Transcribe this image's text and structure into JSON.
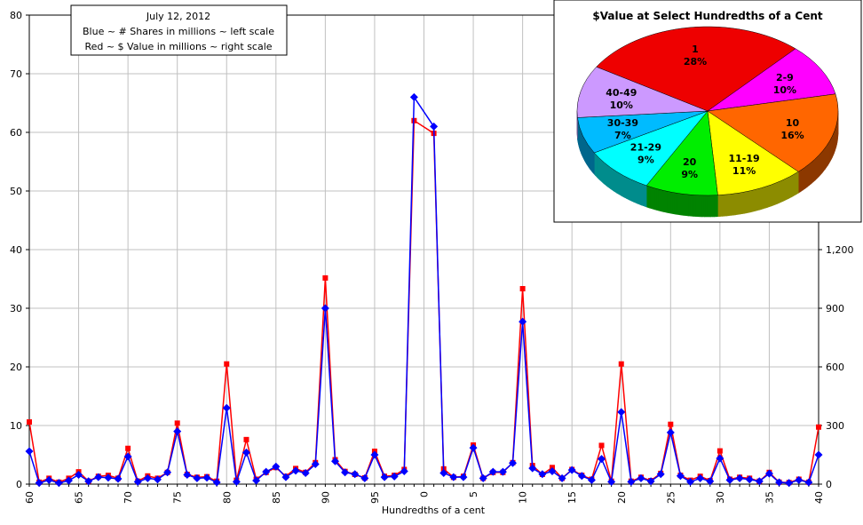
{
  "chart_data": [
    {
      "type": "line",
      "legend_box": {
        "date": "July 12, 2012",
        "line_blue": "Blue ~ # Shares in millions ~ left scale",
        "line_red": "Red ~ $ Value in millions ~ right scale"
      },
      "xlabel": "Hundredths of a cent",
      "x_tick_labels": [
        "60",
        "65",
        "70",
        "75",
        "80",
        "85",
        "90",
        "95",
        "0",
        "5",
        "10",
        "15",
        "20",
        "25",
        "30",
        "35",
        "40"
      ],
      "y_left": {
        "range": [
          0,
          80
        ],
        "ticks": [
          "0",
          "10",
          "20",
          "30",
          "40",
          "50",
          "60",
          "70",
          "80"
        ]
      },
      "y_right": {
        "range": [
          0,
          2400
        ],
        "ticks": [
          "0",
          "300",
          "600",
          "900",
          "1,200"
        ]
      },
      "grid": true,
      "x": [
        60,
        61,
        62,
        63,
        64,
        65,
        66,
        67,
        68,
        69,
        70,
        71,
        72,
        73,
        74,
        75,
        76,
        77,
        78,
        79,
        80,
        81,
        82,
        83,
        84,
        85,
        86,
        87,
        88,
        89,
        90,
        91,
        92,
        93,
        94,
        95,
        96,
        97,
        98,
        99,
        0,
        1,
        2,
        3,
        4,
        5,
        6,
        7,
        8,
        9,
        10,
        11,
        12,
        13,
        14,
        15,
        16,
        17,
        18,
        19,
        20,
        21,
        22,
        23,
        24,
        25,
        26,
        27,
        28,
        29,
        30,
        31,
        32,
        33,
        34,
        35,
        36,
        37,
        38,
        39,
        40
      ],
      "series": [
        {
          "color": "#0000ff",
          "axis": "left",
          "marker": "diamond",
          "values": [
            5.6,
            0.2,
            0.7,
            0.2,
            0.6,
            1.6,
            0.5,
            1.2,
            1.1,
            0.9,
            4.7,
            0.4,
            1.0,
            0.8,
            2.0,
            9.0,
            1.6,
            1.0,
            1.1,
            0.3,
            13.0,
            0.4,
            5.4,
            0.6,
            2.1,
            3.0,
            1.2,
            2.3,
            1.9,
            3.4,
            30.0,
            3.9,
            2.0,
            1.7,
            1.0,
            5.0,
            1.2,
            1.3,
            2.2,
            66.0,
            null,
            61.0,
            1.9,
            1.2,
            1.2,
            6.2,
            1.0,
            2.1,
            2.1,
            3.6,
            27.7,
            2.7,
            1.7,
            2.2,
            1.0,
            2.4,
            1.4,
            0.7,
            4.3,
            0.4,
            12.3,
            0.4,
            1.0,
            0.5,
            1.7,
            8.8,
            1.4,
            0.4,
            1.0,
            0.5,
            4.4,
            0.7,
            1.0,
            0.8,
            0.5,
            1.8,
            0.3,
            0.2,
            0.7,
            0.3,
            5.0
          ]
        },
        {
          "color": "#ff0000",
          "axis": "right",
          "marker": "square",
          "values": [
            318,
            10,
            30,
            10,
            30,
            63,
            15,
            40,
            45,
            30,
            183,
            15,
            42,
            30,
            60,
            312,
            50,
            35,
            38,
            15,
            615,
            20,
            228,
            25,
            60,
            85,
            40,
            80,
            60,
            110,
            1055,
            125,
            65,
            50,
            32,
            168,
            40,
            45,
            75,
            1860,
            null,
            1795,
            78,
            35,
            40,
            200,
            30,
            60,
            60,
            110,
            1000,
            95,
            50,
            85,
            30,
            75,
            45,
            25,
            198,
            15,
            615,
            15,
            35,
            18,
            55,
            306,
            45,
            20,
            40,
            18,
            170,
            25,
            35,
            30,
            15,
            60,
            10,
            8,
            25,
            10,
            292
          ]
        }
      ]
    },
    {
      "type": "pie",
      "title": "$Value at Select Hundredths of a Cent",
      "slices": [
        {
          "label": "1",
          "pct": 28,
          "text": "28%",
          "color": "#ee0000"
        },
        {
          "label": "2-9",
          "pct": 10,
          "text": "10%",
          "color": "#ff00ff"
        },
        {
          "label": "10",
          "pct": 16,
          "text": "16%",
          "color": "#ff6600"
        },
        {
          "label": "11-19",
          "pct": 11,
          "text": "11%",
          "color": "#ffff00"
        },
        {
          "label": "20",
          "pct": 9,
          "text": "9%",
          "color": "#00ee00"
        },
        {
          "label": "21-29",
          "pct": 9,
          "text": "9%",
          "color": "#00ffff"
        },
        {
          "label": "30-39",
          "pct": 7,
          "text": "7%",
          "color": "#00bbff"
        },
        {
          "label": "40-49",
          "pct": 10,
          "text": "10%",
          "color": "#cc99ff"
        }
      ]
    }
  ]
}
